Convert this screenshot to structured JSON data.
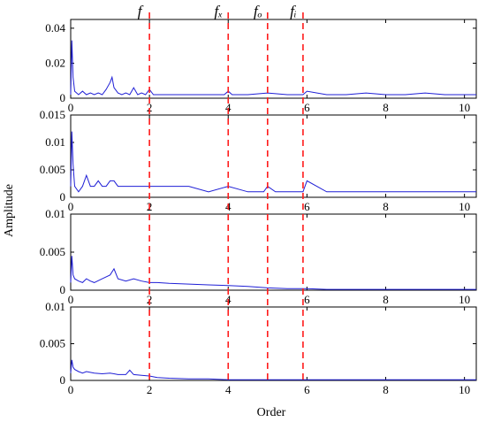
{
  "figure": {
    "ylabel": "Amplitude",
    "xlabel": "Order",
    "colors": {
      "trace": "#1f1fd6",
      "marker": "#ff1a1a",
      "axis": "#000000"
    }
  },
  "markers": [
    {
      "label": "f",
      "x": 2
    },
    {
      "label": "fₓ",
      "x": 4
    },
    {
      "label": "fₒ",
      "x": 5
    },
    {
      "label": "fᵢ",
      "x": 5.9
    }
  ],
  "chart_data": [
    {
      "type": "line",
      "xlim": [
        0,
        10.3
      ],
      "ylim": [
        0,
        0.045
      ],
      "xticks": [
        0,
        2,
        4,
        6,
        8,
        10
      ],
      "xtick_labels": [
        "0",
        "2",
        "4",
        "6",
        "8",
        "10"
      ],
      "yticks": [
        0,
        0.02,
        0.04
      ],
      "ytick_labels": [
        "0",
        "0.02",
        "0.04"
      ],
      "grid": false,
      "x": [
        0,
        0.03,
        0.06,
        0.1,
        0.2,
        0.3,
        0.4,
        0.5,
        0.6,
        0.7,
        0.8,
        0.9,
        1.0,
        1.05,
        1.1,
        1.2,
        1.3,
        1.4,
        1.5,
        1.6,
        1.7,
        1.8,
        1.9,
        2.0,
        2.1,
        2.5,
        3.0,
        3.5,
        3.9,
        4.0,
        4.1,
        4.5,
        5.0,
        5.5,
        5.9,
        6.0,
        6.5,
        7.0,
        7.5,
        8.0,
        8.5,
        9.0,
        9.5,
        10.0,
        10.3
      ],
      "y": [
        0.002,
        0.033,
        0.012,
        0.004,
        0.002,
        0.004,
        0.002,
        0.003,
        0.002,
        0.003,
        0.002,
        0.005,
        0.009,
        0.012,
        0.006,
        0.003,
        0.002,
        0.003,
        0.002,
        0.006,
        0.002,
        0.003,
        0.002,
        0.005,
        0.002,
        0.002,
        0.002,
        0.002,
        0.002,
        0.004,
        0.002,
        0.002,
        0.003,
        0.002,
        0.002,
        0.004,
        0.002,
        0.002,
        0.003,
        0.002,
        0.002,
        0.003,
        0.002,
        0.002,
        0.002
      ]
    },
    {
      "type": "line",
      "xlim": [
        0,
        10.3
      ],
      "ylim": [
        0,
        0.015
      ],
      "xticks": [
        0,
        2,
        4,
        6,
        8,
        10
      ],
      "xtick_labels": [
        "0",
        "2",
        "4",
        "6",
        "8",
        "10"
      ],
      "yticks": [
        0,
        0.005,
        0.01,
        0.015
      ],
      "ytick_labels": [
        "0",
        "0.005",
        "0.01",
        "0.015"
      ],
      "grid": false,
      "x": [
        0,
        0.03,
        0.06,
        0.1,
        0.2,
        0.3,
        0.4,
        0.5,
        0.6,
        0.7,
        0.8,
        0.9,
        1.0,
        1.1,
        1.2,
        1.4,
        1.6,
        1.8,
        2.0,
        2.2,
        2.5,
        3.0,
        3.5,
        4.0,
        4.5,
        4.9,
        5.0,
        5.2,
        5.5,
        5.9,
        6.0,
        6.5,
        7.0,
        7.5,
        8.0,
        8.5,
        9.0,
        9.5,
        10.0,
        10.3
      ],
      "y": [
        0.002,
        0.012,
        0.006,
        0.002,
        0.001,
        0.002,
        0.004,
        0.002,
        0.002,
        0.003,
        0.002,
        0.002,
        0.003,
        0.003,
        0.002,
        0.002,
        0.002,
        0.002,
        0.002,
        0.002,
        0.002,
        0.002,
        0.001,
        0.002,
        0.001,
        0.001,
        0.002,
        0.001,
        0.001,
        0.001,
        0.003,
        0.001,
        0.001,
        0.001,
        0.001,
        0.001,
        0.001,
        0.001,
        0.001,
        0.001
      ]
    },
    {
      "type": "line",
      "xlim": [
        0,
        10.3
      ],
      "ylim": [
        0,
        0.01
      ],
      "xticks": [
        0,
        2,
        4,
        6,
        8,
        10
      ],
      "xtick_labels": [
        "0",
        "2",
        "4",
        "6",
        "8",
        "10"
      ],
      "yticks": [
        0,
        0.005,
        0.01
      ],
      "ytick_labels": [
        "0",
        "0.005",
        "0.01"
      ],
      "grid": false,
      "x": [
        0,
        0.03,
        0.06,
        0.1,
        0.2,
        0.3,
        0.4,
        0.5,
        0.6,
        0.8,
        1.0,
        1.1,
        1.2,
        1.4,
        1.6,
        1.8,
        2.0,
        2.2,
        2.5,
        3.0,
        3.5,
        4.0,
        4.5,
        5.0,
        5.5,
        6.0,
        6.5,
        7.0,
        7.5,
        8.0,
        8.5,
        9.0,
        9.5,
        10.0,
        10.3
      ],
      "y": [
        0.001,
        0.0045,
        0.002,
        0.0015,
        0.0012,
        0.001,
        0.0015,
        0.0012,
        0.001,
        0.0015,
        0.002,
        0.0028,
        0.0015,
        0.0012,
        0.0015,
        0.0012,
        0.001,
        0.001,
        0.0009,
        0.0008,
        0.0007,
        0.0006,
        0.0005,
        0.0003,
        0.0002,
        0.0002,
        0.0001,
        0.0001,
        0.0001,
        0.0001,
        0.0001,
        0.0001,
        0.0001,
        0.0001,
        0.0001
      ]
    },
    {
      "type": "line",
      "xlim": [
        0,
        10.3
      ],
      "ylim": [
        0,
        0.01
      ],
      "xticks": [
        0,
        2,
        4,
        6,
        8,
        10
      ],
      "xtick_labels": [
        "0",
        "2",
        "4",
        "6",
        "8",
        "10"
      ],
      "yticks": [
        0,
        0.005,
        0.01
      ],
      "ytick_labels": [
        "0",
        "0.005",
        "0.01"
      ],
      "grid": false,
      "x": [
        0,
        0.03,
        0.06,
        0.1,
        0.2,
        0.3,
        0.4,
        0.6,
        0.8,
        1.0,
        1.2,
        1.4,
        1.5,
        1.6,
        1.8,
        2.0,
        2.2,
        2.5,
        3.0,
        3.5,
        4.0,
        4.5,
        5.0,
        5.5,
        6.0,
        6.5,
        7.0,
        7.5,
        8.0,
        8.5,
        9.0,
        9.5,
        10.0,
        10.3
      ],
      "y": [
        0.001,
        0.0028,
        0.0018,
        0.0015,
        0.0012,
        0.001,
        0.0012,
        0.001,
        0.0009,
        0.001,
        0.0008,
        0.0008,
        0.0014,
        0.0008,
        0.0007,
        0.0006,
        0.0004,
        0.0003,
        0.0002,
        0.0002,
        0.0001,
        0.0001,
        0.0001,
        0.0001,
        0.0001,
        0.0001,
        0.0001,
        0.0001,
        0.0001,
        0.0001,
        0.0001,
        0.0001,
        0.0001,
        0.0001
      ]
    }
  ]
}
